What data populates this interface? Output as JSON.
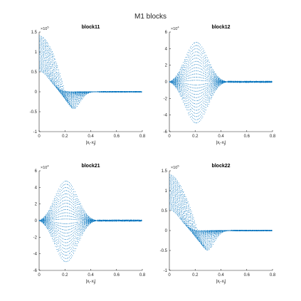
{
  "figure_title": "M1 blocks",
  "colors": {
    "points": "#0072BD",
    "axes": "#262626"
  },
  "chart_data": [
    {
      "type": "scatter",
      "title": "block11",
      "xlabel": "|x_i-x_j|",
      "xlim": [
        0,
        0.8
      ],
      "xticks": [
        "0",
        "0.2",
        "0.4",
        "0.6",
        "0.8"
      ],
      "ylim": [
        -1,
        1.5
      ],
      "yticks": [
        "-1",
        "-0.5",
        "0",
        "0.5",
        "1",
        "1.5"
      ],
      "y_exponent": "5",
      "grid": false,
      "shape": {
        "kind": "decay",
        "start": 1.4,
        "min": -0.62,
        "min_at": 0.23,
        "settle": 0.45
      }
    },
    {
      "type": "scatter",
      "title": "block12",
      "xlabel": "|x_i-x_j|",
      "xlim": [
        0,
        0.8
      ],
      "xticks": [
        "0",
        "0.2",
        "0.4",
        "0.6",
        "0.8"
      ],
      "ylim": [
        -6,
        6
      ],
      "yticks": [
        "-6",
        "-4",
        "-2",
        "0",
        "2",
        "4",
        "6"
      ],
      "y_exponent": "4",
      "grid": false,
      "shape": {
        "kind": "envelope",
        "peak": 5.0,
        "peak_at": 0.2,
        "settle": 0.45
      }
    },
    {
      "type": "scatter",
      "title": "block21",
      "xlabel": "|x_i-x_j|",
      "xlim": [
        0,
        0.8
      ],
      "xticks": [
        "0",
        "0.2",
        "0.4",
        "0.6",
        "0.8"
      ],
      "ylim": [
        -6,
        6
      ],
      "yticks": [
        "-6",
        "-4",
        "-2",
        "0",
        "2",
        "4",
        "6"
      ],
      "y_exponent": "4",
      "grid": false,
      "shape": {
        "kind": "envelope",
        "peak": 5.0,
        "peak_at": 0.2,
        "settle": 0.45
      }
    },
    {
      "type": "scatter",
      "title": "block22",
      "xlabel": "|x_i-x_j|",
      "xlim": [
        0,
        0.8
      ],
      "xticks": [
        "0",
        "0.2",
        "0.4",
        "0.6",
        "0.8"
      ],
      "ylim": [
        -1,
        1.5
      ],
      "yticks": [
        "-1",
        "-0.5",
        "0",
        "0.5",
        "1",
        "1.5"
      ],
      "y_exponent": "5",
      "grid": false,
      "shape": {
        "kind": "decay",
        "start": 1.4,
        "min": -0.62,
        "min_at": 0.26,
        "settle": 0.47
      }
    }
  ]
}
